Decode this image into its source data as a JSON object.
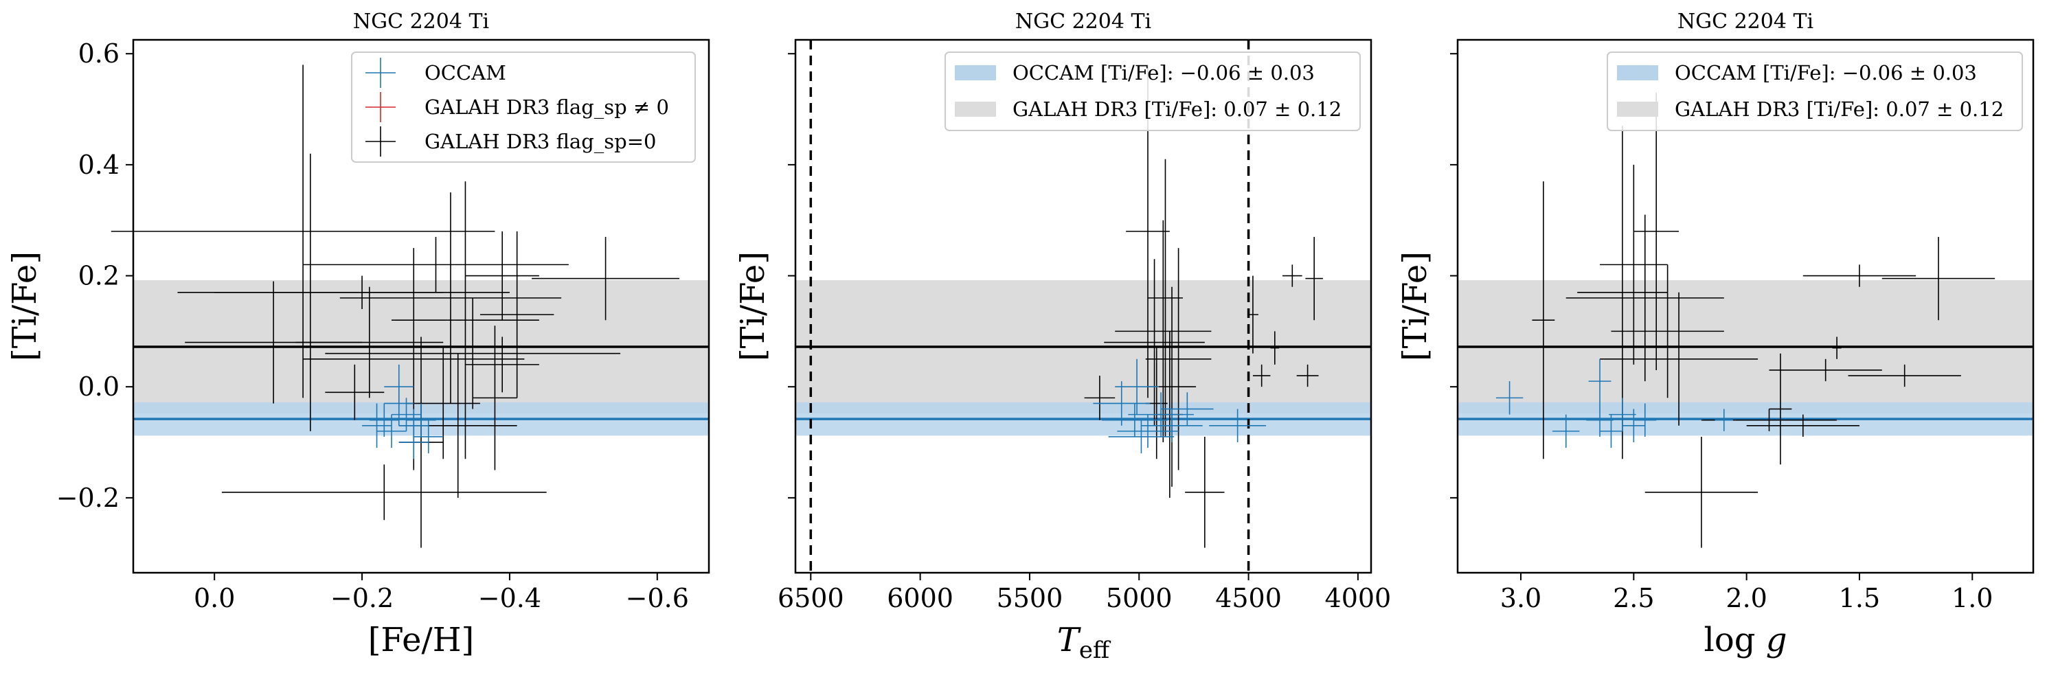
{
  "figure": {
    "title": "NGC 2204 Ti"
  },
  "colors": {
    "occam": "#1f77b4",
    "flag_bad": "#d62728",
    "flag_good": "#000000",
    "occam_band": "#b7d3ea",
    "galah_band": "#dcdcdc"
  },
  "chart_data": [
    {
      "type": "scatter",
      "title": "NGC 2204 Ti",
      "xlabel": "[Fe/H]",
      "ylabel": "[Ti/Fe]",
      "xlim": [
        0.11,
        -0.67
      ],
      "ylim": [
        -0.335,
        0.625
      ],
      "x_ticks": [
        0.0,
        -0.2,
        -0.4,
        -0.6
      ],
      "x_tick_labels": [
        "0.0",
        "−0.2",
        "−0.4",
        "−0.6"
      ],
      "y_ticks": [
        -0.2,
        0.0,
        0.2,
        0.4,
        0.6
      ],
      "y_tick_labels": [
        "−0.2",
        "0.0",
        "0.2",
        "0.4",
        "0.6"
      ],
      "show_y_tick_labels": true,
      "grid": false,
      "legend": {
        "location": "top-right",
        "entries": [
          {
            "label": "OCCAM",
            "marker": "cross",
            "color_key": "occam"
          },
          {
            "label": "GALAH DR3 flag_sp ≠ 0",
            "marker": "cross",
            "color_key": "flag_bad"
          },
          {
            "label": "GALAH DR3 flag_sp=0",
            "marker": "cross",
            "color_key": "flag_good"
          }
        ]
      },
      "reference_lines": [
        {
          "kind": "horizontal",
          "value": -0.058,
          "band": [
            -0.088,
            -0.028
          ],
          "color_key": "occam",
          "band_color_key": "occam_band"
        },
        {
          "kind": "horizontal",
          "value": 0.072,
          "band": [
            -0.048,
            0.192
          ],
          "color_key": "flag_good",
          "band_color_key": "galah_band"
        }
      ],
      "series": [
        {
          "name": "OCCAM",
          "color_key": "occam",
          "points": [
            {
              "x": -0.23,
              "y": -0.06,
              "xerr": 0.02,
              "yerr": 0.03
            },
            {
              "x": -0.25,
              "y": -0.03,
              "xerr": 0.02,
              "yerr": 0.04
            },
            {
              "x": -0.26,
              "y": -0.05,
              "xerr": 0.02,
              "yerr": 0.03
            },
            {
              "x": -0.27,
              "y": -0.07,
              "xerr": 0.02,
              "yerr": 0.03
            },
            {
              "x": -0.24,
              "y": -0.08,
              "xerr": 0.02,
              "yerr": 0.03
            },
            {
              "x": -0.28,
              "y": -0.06,
              "xerr": 0.02,
              "yerr": 0.03
            },
            {
              "x": -0.29,
              "y": -0.09,
              "xerr": 0.02,
              "yerr": 0.03
            },
            {
              "x": -0.22,
              "y": -0.07,
              "xerr": 0.02,
              "yerr": 0.04
            },
            {
              "x": -0.25,
              "y": 0.0,
              "xerr": 0.02,
              "yerr": 0.04
            },
            {
              "x": -0.27,
              "y": -0.1,
              "xerr": 0.02,
              "yerr": 0.03
            }
          ]
        },
        {
          "name": "GALAH DR3 flag_sp=0",
          "color_key": "flag_good",
          "points": [
            {
              "x": -0.12,
              "y": 0.28,
              "xerr": 0.26,
              "yerr": 0.3
            },
            {
              "x": -0.32,
              "y": 0.16,
              "xerr": 0.15,
              "yerr": 0.19
            },
            {
              "x": -0.53,
              "y": 0.195,
              "xerr": 0.1,
              "yerr": 0.075
            },
            {
              "x": -0.39,
              "y": 0.2,
              "xerr": 0.05,
              "yerr": 0.08
            },
            {
              "x": -0.3,
              "y": 0.22,
              "xerr": 0.18,
              "yerr": 0.05
            },
            {
              "x": -0.2,
              "y": 0.17,
              "xerr": 0.2,
              "yerr": 0.03
            },
            {
              "x": -0.08,
              "y": 0.08,
              "xerr": 0.12,
              "yerr": 0.11
            },
            {
              "x": -0.13,
              "y": 0.17,
              "xerr": 0.18,
              "yerr": 0.25
            },
            {
              "x": -0.27,
              "y": 0.05,
              "xerr": 0.15,
              "yerr": 0.2
            },
            {
              "x": -0.35,
              "y": 0.06,
              "xerr": 0.2,
              "yerr": 0.1
            },
            {
              "x": -0.39,
              "y": 0.04,
              "xerr": 0.05,
              "yerr": 0.05
            },
            {
              "x": -0.19,
              "y": -0.01,
              "xerr": 0.04,
              "yerr": 0.05
            },
            {
              "x": -0.33,
              "y": -0.07,
              "xerr": 0.08,
              "yerr": 0.13
            },
            {
              "x": -0.31,
              "y": -0.03,
              "xerr": 0.05,
              "yerr": 0.1
            },
            {
              "x": -0.34,
              "y": 0.12,
              "xerr": 0.1,
              "yerr": 0.25
            },
            {
              "x": -0.41,
              "y": 0.13,
              "xerr": 0.05,
              "yerr": 0.15
            },
            {
              "x": -0.23,
              "y": -0.19,
              "xerr": 0.22,
              "yerr": 0.05
            },
            {
              "x": -0.28,
              "y": -0.1,
              "xerr": 0.03,
              "yerr": 0.19
            },
            {
              "x": -0.38,
              "y": -0.02,
              "xerr": 0.03,
              "yerr": 0.13
            },
            {
              "x": -0.21,
              "y": 0.08,
              "xerr": 0.1,
              "yerr": 0.1
            }
          ]
        }
      ]
    },
    {
      "type": "scatter",
      "title": "NGC 2204 Ti",
      "xlabel": "T_eff",
      "ylabel": "[Ti/Fe]",
      "xlim": [
        6570,
        3940
      ],
      "ylim": [
        -0.335,
        0.625
      ],
      "x_ticks": [
        6500,
        6000,
        5500,
        5000,
        4500,
        4000
      ],
      "x_tick_labels": [
        "6500",
        "6000",
        "5500",
        "5000",
        "4500",
        "4000"
      ],
      "y_ticks": [
        -0.2,
        0.0,
        0.2,
        0.4,
        0.6
      ],
      "y_tick_labels": [
        "−0.2",
        "0.0",
        "0.2",
        "0.4",
        "0.6"
      ],
      "show_y_tick_labels": false,
      "grid": false,
      "vertical_lines": [
        {
          "x": 6500,
          "style": "dashed"
        },
        {
          "x": 4500,
          "style": "dashed"
        }
      ],
      "legend": {
        "location": "top-right",
        "entries": [
          {
            "label": "OCCAM [Ti/Fe]: −0.06 ± 0.03",
            "marker": "band",
            "color_key": "occam_band"
          },
          {
            "label": "GALAH DR3 [Ti/Fe]: 0.07 ± 0.12",
            "marker": "band",
            "color_key": "galah_band"
          }
        ]
      },
      "reference_lines": [
        {
          "kind": "horizontal",
          "value": -0.058,
          "band": [
            -0.088,
            -0.028
          ],
          "color_key": "occam",
          "band_color_key": "occam_band"
        },
        {
          "kind": "horizontal",
          "value": 0.072,
          "band": [
            -0.048,
            0.192
          ],
          "color_key": "flag_good",
          "band_color_key": "galah_band"
        }
      ],
      "series": [
        {
          "name": "OCCAM",
          "color_key": "occam",
          "points": [
            {
              "x": 5020,
              "y": -0.06,
              "xerr": 150,
              "yerr": 0.03
            },
            {
              "x": 4960,
              "y": -0.08,
              "xerr": 140,
              "yerr": 0.03
            },
            {
              "x": 4900,
              "y": -0.05,
              "xerr": 150,
              "yerr": 0.04
            },
            {
              "x": 4780,
              "y": -0.04,
              "xerr": 120,
              "yerr": 0.03
            },
            {
              "x": 4550,
              "y": -0.07,
              "xerr": 130,
              "yerr": 0.03
            },
            {
              "x": 5080,
              "y": -0.03,
              "xerr": 130,
              "yerr": 0.04
            },
            {
              "x": 4850,
              "y": -0.07,
              "xerr": 140,
              "yerr": 0.03
            },
            {
              "x": 4990,
              "y": -0.09,
              "xerr": 150,
              "yerr": 0.03
            },
            {
              "x": 5010,
              "y": 0.0,
              "xerr": 100,
              "yerr": 0.05
            }
          ]
        },
        {
          "name": "GALAH DR3 flag_sp=0",
          "color_key": "flag_good",
          "points": [
            {
              "x": 4960,
              "y": 0.28,
              "xerr": 100,
              "yerr": 0.3
            },
            {
              "x": 4880,
              "y": 0.16,
              "xerr": 80,
              "yerr": 0.25
            },
            {
              "x": 4890,
              "y": 0.1,
              "xerr": 220,
              "yerr": 0.2
            },
            {
              "x": 4930,
              "y": 0.08,
              "xerr": 230,
              "yerr": 0.15
            },
            {
              "x": 4820,
              "y": 0.05,
              "xerr": 150,
              "yerr": 0.2
            },
            {
              "x": 4850,
              "y": 0.0,
              "xerr": 110,
              "yerr": 0.18
            },
            {
              "x": 4200,
              "y": 0.195,
              "xerr": 40,
              "yerr": 0.075
            },
            {
              "x": 4300,
              "y": 0.2,
              "xerr": 45,
              "yerr": 0.02
            },
            {
              "x": 4230,
              "y": 0.02,
              "xerr": 50,
              "yerr": 0.02
            },
            {
              "x": 4380,
              "y": 0.07,
              "xerr": 20,
              "yerr": 0.03
            },
            {
              "x": 4440,
              "y": 0.02,
              "xerr": 40,
              "yerr": 0.02
            },
            {
              "x": 4480,
              "y": 0.13,
              "xerr": 25,
              "yerr": 0.07
            },
            {
              "x": 5180,
              "y": -0.02,
              "xerr": 70,
              "yerr": 0.04
            },
            {
              "x": 4700,
              "y": -0.19,
              "xerr": 90,
              "yerr": 0.1
            },
            {
              "x": 4860,
              "y": -0.05,
              "xerr": 60,
              "yerr": 0.15
            },
            {
              "x": 4920,
              "y": -0.03,
              "xerr": 50,
              "yerr": 0.1
            }
          ]
        }
      ]
    },
    {
      "type": "scatter",
      "title": "NGC 2204 Ti",
      "xlabel": "log g",
      "ylabel": "[Ti/Fe]",
      "xlim": [
        3.28,
        0.73
      ],
      "ylim": [
        -0.335,
        0.625
      ],
      "x_ticks": [
        3.0,
        2.5,
        2.0,
        1.5,
        1.0
      ],
      "x_tick_labels": [
        "3.0",
        "2.5",
        "2.0",
        "1.5",
        "1.0"
      ],
      "y_ticks": [
        -0.2,
        0.0,
        0.2,
        0.4,
        0.6
      ],
      "y_tick_labels": [
        "−0.2",
        "0.0",
        "0.2",
        "0.4",
        "0.6"
      ],
      "show_y_tick_labels": false,
      "grid": false,
      "legend": {
        "location": "top-right",
        "entries": [
          {
            "label": "OCCAM [Ti/Fe]: −0.06 ± 0.03",
            "marker": "band",
            "color_key": "occam_band"
          },
          {
            "label": "GALAH DR3 [Ti/Fe]: 0.07 ± 0.12",
            "marker": "band",
            "color_key": "galah_band"
          }
        ]
      },
      "reference_lines": [
        {
          "kind": "horizontal",
          "value": -0.058,
          "band": [
            -0.088,
            -0.028
          ],
          "color_key": "occam",
          "band_color_key": "occam_band"
        },
        {
          "kind": "horizontal",
          "value": 0.072,
          "band": [
            -0.048,
            0.192
          ],
          "color_key": "flag_good",
          "band_color_key": "galah_band"
        }
      ],
      "series": [
        {
          "name": "OCCAM",
          "color_key": "occam",
          "points": [
            {
              "x": 3.05,
              "y": -0.02,
              "xerr": 0.06,
              "yerr": 0.03
            },
            {
              "x": 2.8,
              "y": -0.08,
              "xerr": 0.06,
              "yerr": 0.03
            },
            {
              "x": 2.65,
              "y": -0.06,
              "xerr": 0.06,
              "yerr": 0.03
            },
            {
              "x": 2.6,
              "y": -0.08,
              "xerr": 0.05,
              "yerr": 0.03
            },
            {
              "x": 2.55,
              "y": -0.05,
              "xerr": 0.06,
              "yerr": 0.03
            },
            {
              "x": 2.5,
              "y": -0.07,
              "xerr": 0.05,
              "yerr": 0.03
            },
            {
              "x": 2.45,
              "y": -0.06,
              "xerr": 0.05,
              "yerr": 0.03
            },
            {
              "x": 2.65,
              "y": 0.01,
              "xerr": 0.05,
              "yerr": 0.04
            },
            {
              "x": 2.1,
              "y": -0.06,
              "xerr": 0.04,
              "yerr": 0.02
            }
          ]
        },
        {
          "name": "GALAH DR3 flag_sp=0",
          "color_key": "flag_good",
          "points": [
            {
              "x": 2.55,
              "y": 0.17,
              "xerr": 0.2,
              "yerr": 0.3
            },
            {
              "x": 2.4,
              "y": 0.28,
              "xerr": 0.1,
              "yerr": 0.25
            },
            {
              "x": 2.5,
              "y": 0.22,
              "xerr": 0.15,
              "yerr": 0.18
            },
            {
              "x": 2.45,
              "y": 0.16,
              "xerr": 0.35,
              "yerr": 0.15
            },
            {
              "x": 2.35,
              "y": 0.1,
              "xerr": 0.25,
              "yerr": 0.12
            },
            {
              "x": 2.3,
              "y": 0.05,
              "xerr": 0.35,
              "yerr": 0.12
            },
            {
              "x": 1.5,
              "y": 0.2,
              "xerr": 0.25,
              "yerr": 0.02
            },
            {
              "x": 1.15,
              "y": 0.195,
              "xerr": 0.25,
              "yerr": 0.075
            },
            {
              "x": 1.6,
              "y": 0.07,
              "xerr": 0.02,
              "yerr": 0.02
            },
            {
              "x": 1.65,
              "y": 0.03,
              "xerr": 0.25,
              "yerr": 0.02
            },
            {
              "x": 1.3,
              "y": 0.02,
              "xerr": 0.25,
              "yerr": 0.02
            },
            {
              "x": 1.85,
              "y": -0.04,
              "xerr": 0.05,
              "yerr": 0.1
            },
            {
              "x": 2.2,
              "y": -0.19,
              "xerr": 0.25,
              "yerr": 0.1
            },
            {
              "x": 1.9,
              "y": -0.06,
              "xerr": 0.3,
              "yerr": 0.02
            },
            {
              "x": 1.75,
              "y": -0.07,
              "xerr": 0.25,
              "yerr": 0.02
            },
            {
              "x": 2.9,
              "y": 0.12,
              "xerr": 0.05,
              "yerr": 0.25
            }
          ]
        }
      ]
    }
  ]
}
